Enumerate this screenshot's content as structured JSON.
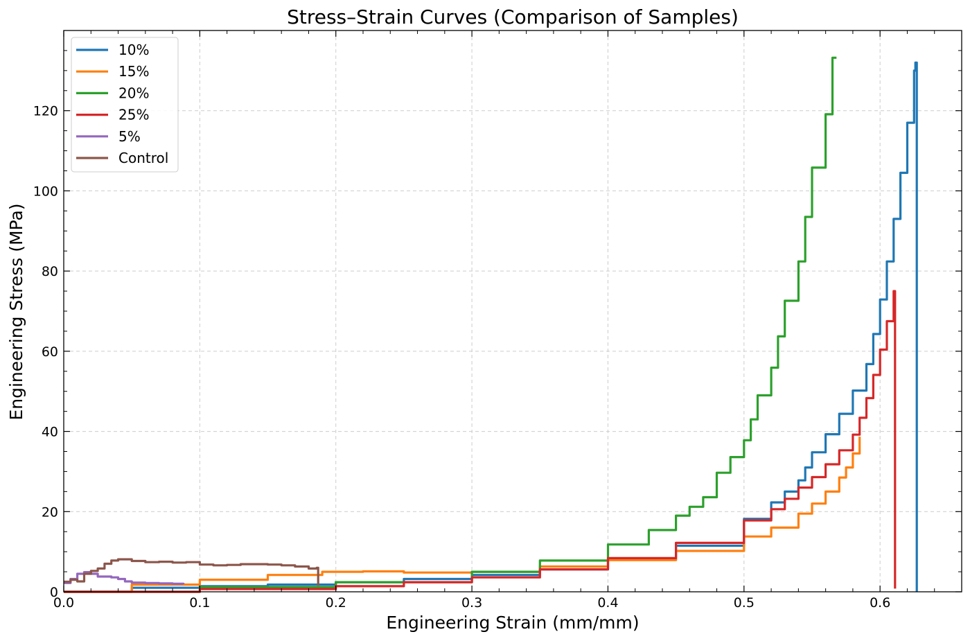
{
  "chart_data": {
    "type": "line",
    "title": "Stress–Strain Curves (Comparison of Samples)",
    "xlabel": "Engineering Strain (mm/mm)",
    "ylabel": "Engineering Stress (MPa)",
    "xlim": [
      0.0,
      0.66
    ],
    "ylim": [
      0,
      140
    ],
    "xticks": [
      0.0,
      0.1,
      0.2,
      0.3,
      0.4,
      0.5,
      0.6
    ],
    "xtick_labels": [
      "0.0",
      "0.1",
      "0.2",
      "0.3",
      "0.4",
      "0.5",
      "0.6"
    ],
    "yticks": [
      0,
      20,
      40,
      60,
      80,
      100,
      120
    ],
    "ytick_labels": [
      "0",
      "20",
      "40",
      "60",
      "80",
      "100",
      "120"
    ],
    "grid": true,
    "legend_position": "top-left",
    "series": [
      {
        "name": "10%",
        "color": "#1f77b4",
        "points": [
          [
            0.0,
            0.0
          ],
          [
            0.05,
            1.0
          ],
          [
            0.1,
            1.4
          ],
          [
            0.15,
            1.8
          ],
          [
            0.2,
            2.4
          ],
          [
            0.25,
            3.2
          ],
          [
            0.3,
            4.2
          ],
          [
            0.35,
            5.6
          ],
          [
            0.4,
            8.0
          ],
          [
            0.45,
            11.5
          ],
          [
            0.5,
            18.2
          ],
          [
            0.52,
            22.3
          ],
          [
            0.53,
            25.0
          ],
          [
            0.54,
            27.8
          ],
          [
            0.545,
            31.0
          ],
          [
            0.55,
            34.8
          ],
          [
            0.56,
            39.3
          ],
          [
            0.57,
            44.4
          ],
          [
            0.58,
            50.2
          ],
          [
            0.59,
            56.8
          ],
          [
            0.595,
            64.3
          ],
          [
            0.6,
            72.9
          ],
          [
            0.605,
            82.4
          ],
          [
            0.61,
            93.0
          ],
          [
            0.615,
            104.5
          ],
          [
            0.62,
            117.0
          ],
          [
            0.625,
            130.0
          ],
          [
            0.626,
            132.0
          ],
          [
            0.627,
            0.0
          ]
        ]
      },
      {
        "name": "15%",
        "color": "#ff7f0e",
        "points": [
          [
            0.0,
            0.0
          ],
          [
            0.05,
            1.8
          ],
          [
            0.1,
            3.0
          ],
          [
            0.15,
            4.2
          ],
          [
            0.19,
            5.0
          ],
          [
            0.22,
            5.1
          ],
          [
            0.25,
            4.8
          ],
          [
            0.3,
            5.0
          ],
          [
            0.35,
            6.3
          ],
          [
            0.4,
            7.9
          ],
          [
            0.45,
            10.2
          ],
          [
            0.5,
            13.8
          ],
          [
            0.52,
            16.0
          ],
          [
            0.54,
            19.5
          ],
          [
            0.55,
            22.0
          ],
          [
            0.56,
            25.0
          ],
          [
            0.57,
            28.5
          ],
          [
            0.575,
            31.0
          ],
          [
            0.58,
            34.5
          ],
          [
            0.585,
            38.7
          ]
        ]
      },
      {
        "name": "20%",
        "color": "#2ca02c",
        "points": [
          [
            0.0,
            0.0
          ],
          [
            0.1,
            1.2
          ],
          [
            0.2,
            2.4
          ],
          [
            0.3,
            5.0
          ],
          [
            0.35,
            7.8
          ],
          [
            0.4,
            11.8
          ],
          [
            0.43,
            15.4
          ],
          [
            0.45,
            19.0
          ],
          [
            0.46,
            21.2
          ],
          [
            0.47,
            23.6
          ],
          [
            0.48,
            29.7
          ],
          [
            0.49,
            33.6
          ],
          [
            0.5,
            37.8
          ],
          [
            0.505,
            43.0
          ],
          [
            0.51,
            49.0
          ],
          [
            0.52,
            55.9
          ],
          [
            0.525,
            63.7
          ],
          [
            0.53,
            72.6
          ],
          [
            0.54,
            82.4
          ],
          [
            0.545,
            93.5
          ],
          [
            0.55,
            105.8
          ],
          [
            0.56,
            119.1
          ],
          [
            0.565,
            133.2
          ],
          [
            0.568,
            133.2
          ]
        ]
      },
      {
        "name": "25%",
        "color": "#d62728",
        "points": [
          [
            0.0,
            0.0
          ],
          [
            0.1,
            0.7
          ],
          [
            0.2,
            1.4
          ],
          [
            0.25,
            2.4
          ],
          [
            0.3,
            3.6
          ],
          [
            0.35,
            5.6
          ],
          [
            0.4,
            8.4
          ],
          [
            0.45,
            12.2
          ],
          [
            0.5,
            17.8
          ],
          [
            0.52,
            20.6
          ],
          [
            0.53,
            23.2
          ],
          [
            0.54,
            26.0
          ],
          [
            0.55,
            28.6
          ],
          [
            0.56,
            31.8
          ],
          [
            0.57,
            35.3
          ],
          [
            0.58,
            39.2
          ],
          [
            0.585,
            43.4
          ],
          [
            0.59,
            48.3
          ],
          [
            0.595,
            54.1
          ],
          [
            0.6,
            60.4
          ],
          [
            0.605,
            67.5
          ],
          [
            0.61,
            75.0
          ],
          [
            0.611,
            0.8
          ]
        ]
      },
      {
        "name": "5%",
        "color": "#9467bd",
        "points": [
          [
            0.0,
            2.2
          ],
          [
            0.005,
            3.2
          ],
          [
            0.01,
            4.5
          ],
          [
            0.015,
            4.9
          ],
          [
            0.02,
            4.5
          ],
          [
            0.025,
            3.8
          ],
          [
            0.035,
            3.6
          ],
          [
            0.04,
            3.2
          ],
          [
            0.045,
            2.6
          ],
          [
            0.05,
            2.3
          ],
          [
            0.06,
            2.2
          ],
          [
            0.07,
            2.1
          ],
          [
            0.08,
            2.0
          ],
          [
            0.088,
            1.9
          ]
        ]
      },
      {
        "name": "Control",
        "color": "#8c564b",
        "points": [
          [
            0.0,
            2.5
          ],
          [
            0.005,
            3.0
          ],
          [
            0.01,
            2.6
          ],
          [
            0.015,
            4.5
          ],
          [
            0.02,
            5.2
          ],
          [
            0.025,
            5.8
          ],
          [
            0.03,
            7.0
          ],
          [
            0.035,
            7.8
          ],
          [
            0.04,
            8.1
          ],
          [
            0.05,
            7.7
          ],
          [
            0.06,
            7.4
          ],
          [
            0.07,
            7.5
          ],
          [
            0.08,
            7.3
          ],
          [
            0.09,
            7.4
          ],
          [
            0.1,
            6.8
          ],
          [
            0.11,
            6.6
          ],
          [
            0.12,
            6.7
          ],
          [
            0.13,
            6.9
          ],
          [
            0.14,
            6.9
          ],
          [
            0.15,
            6.8
          ],
          [
            0.16,
            6.6
          ],
          [
            0.17,
            6.3
          ],
          [
            0.18,
            5.8
          ],
          [
            0.186,
            6.0
          ],
          [
            0.187,
            1.5
          ]
        ]
      }
    ]
  }
}
